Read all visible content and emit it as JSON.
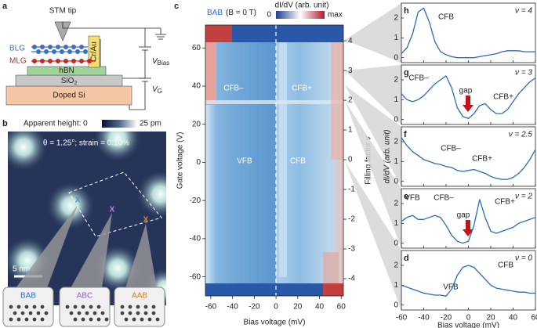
{
  "figure": {
    "panel_a": {
      "label": "a",
      "stm_tip": "STM tip",
      "blg": "BLG",
      "mlg": "MLG",
      "electrode": "Cr/Au",
      "hbn": "hBN",
      "sio2": {
        "text": "SiO",
        "subscript": "2"
      },
      "substrate": "Doped Si",
      "v_bias": {
        "symbol": "V",
        "subscript": "Bias"
      },
      "v_gate": {
        "symbol": "V",
        "subscript": "G"
      }
    },
    "panel_b": {
      "label": "b",
      "colorbar_label": "Apparent height: 0",
      "colorbar_max": "25 pm",
      "annotation": "θ = 1.25°; strain = 0.10%",
      "scale_bar": "5 nm",
      "markers": [
        "X",
        "X",
        "X"
      ],
      "stackings": [
        "BAB",
        "ABC",
        "AAB"
      ]
    }
  },
  "chart_data": [
    {
      "type": "heatmap",
      "panel": "c",
      "title": "BAB",
      "subtitle": "(B = 0 T)",
      "colorbar_label": "dI/dV (arb. unit)",
      "colorbar_ticks": [
        "0",
        "max"
      ],
      "xlabel": "Bias voltage (mV)",
      "ylabel": "Gate voltage (V)",
      "y2label": "Filling factor ν",
      "xlim": [
        -65,
        62
      ],
      "xticks": [
        -60,
        -40,
        -20,
        0,
        20,
        40,
        60
      ],
      "ylim": [
        -70,
        72
      ],
      "yticks": [
        -60,
        -40,
        -20,
        0,
        20,
        40,
        60
      ],
      "y2lim": [
        -4.58,
        4.53
      ],
      "y2ticks": [
        -4,
        -3,
        -2,
        -1,
        0,
        1,
        2,
        3,
        4
      ],
      "annotations": [
        "CFB–",
        "CFB+",
        "VFB",
        "CFB"
      ]
    },
    {
      "type": "line",
      "panel": "h",
      "annotation_label": "ν = 4",
      "x": [
        -60,
        -55,
        -50,
        -45,
        -40,
        -35,
        -30,
        -25,
        -20,
        -15,
        -10,
        -5,
        0,
        5,
        10,
        15,
        20,
        25,
        30,
        35,
        40,
        45,
        50,
        55,
        60
      ],
      "xlim": [
        -60,
        60
      ],
      "ylim": [
        -0.25,
        2.75
      ],
      "yticks": [
        0,
        1,
        2
      ],
      "series": [
        {
          "color": "#2b6cb8",
          "values": [
            0.2,
            0.5,
            1.2,
            2.3,
            2.5,
            1.8,
            0.8,
            0.3,
            0.15,
            0.05,
            0.0,
            0.0,
            0.0,
            0.0,
            0.05,
            0.1,
            0.15,
            0.2,
            0.3,
            0.35,
            0.35,
            0.35,
            0.3,
            0.3,
            0.3
          ]
        }
      ],
      "annotations": [
        "CFB"
      ]
    },
    {
      "type": "line",
      "panel": "g",
      "annotation_label": "ν = 3",
      "x": [
        -60,
        -55,
        -50,
        -45,
        -40,
        -35,
        -30,
        -25,
        -20,
        -15,
        -10,
        -5,
        0,
        5,
        10,
        15,
        20,
        25,
        30,
        35,
        40,
        45,
        50,
        55,
        60
      ],
      "xlim": [
        -60,
        60
      ],
      "ylim": [
        -0.25,
        2.75
      ],
      "yticks": [
        0,
        1,
        2
      ],
      "series": [
        {
          "color": "#2b6cb8",
          "values": [
            1.3,
            1.0,
            0.9,
            1.0,
            1.2,
            1.5,
            1.8,
            2.0,
            2.2,
            1.6,
            0.6,
            0.15,
            0.05,
            0.3,
            0.7,
            0.8,
            0.5,
            0.3,
            0.3,
            0.5,
            0.9,
            1.3,
            1.6,
            1.9,
            2.1
          ]
        }
      ],
      "annotations": [
        "CFB–",
        "gap",
        "CFB+"
      ]
    },
    {
      "type": "line",
      "panel": "f",
      "annotation_label": "ν = 2.5",
      "ylabel": "dI/dV (arb. unit)",
      "x": [
        -60,
        -55,
        -50,
        -45,
        -40,
        -35,
        -30,
        -25,
        -20,
        -15,
        -10,
        -5,
        0,
        5,
        10,
        15,
        20,
        25,
        30,
        35,
        40,
        45,
        50,
        55,
        60
      ],
      "xlim": [
        -60,
        60
      ],
      "ylim": [
        -0.25,
        2.75
      ],
      "yticks": [
        0,
        1,
        2
      ],
      "series": [
        {
          "color": "#2b6cb8",
          "values": [
            2.2,
            1.8,
            1.5,
            1.3,
            1.1,
            1.0,
            0.9,
            0.85,
            0.75,
            0.7,
            0.55,
            0.5,
            0.55,
            0.6,
            0.5,
            0.4,
            0.25,
            0.15,
            0.1,
            0.1,
            0.2,
            0.4,
            0.7,
            1.1,
            1.6
          ]
        }
      ],
      "annotations": [
        "CFB–",
        "CFB+"
      ]
    },
    {
      "type": "line",
      "panel": "e",
      "annotation_label": "ν = 2",
      "x": [
        -60,
        -55,
        -50,
        -45,
        -40,
        -35,
        -30,
        -25,
        -20,
        -15,
        -10,
        -5,
        0,
        5,
        10,
        15,
        20,
        25,
        30,
        35,
        40,
        45,
        50,
        55,
        60
      ],
      "xlim": [
        -60,
        60
      ],
      "ylim": [
        -0.25,
        2.75
      ],
      "yticks": [
        0,
        1,
        2
      ],
      "series": [
        {
          "color": "#2b6cb8",
          "values": [
            1.1,
            1.3,
            1.4,
            1.2,
            1.2,
            1.3,
            1.4,
            1.3,
            0.9,
            0.4,
            0.1,
            0.0,
            0.1,
            0.9,
            2.2,
            1.3,
            0.6,
            0.5,
            0.6,
            0.7,
            0.8,
            1.0,
            1.1,
            1.2,
            1.3
          ]
        }
      ],
      "annotations": [
        "VFB",
        "CFB–",
        "gap",
        "CFB+"
      ]
    },
    {
      "type": "line",
      "panel": "d",
      "annotation_label": "ν = 0",
      "xlabel": "Bias voltage (mV)",
      "x": [
        -60,
        -55,
        -50,
        -45,
        -40,
        -35,
        -30,
        -25,
        -20,
        -15,
        -10,
        -5,
        0,
        5,
        10,
        15,
        20,
        25,
        30,
        35,
        40,
        45,
        50,
        55,
        60
      ],
      "xlim": [
        -60,
        60
      ],
      "xticks": [
        -60,
        -40,
        -20,
        0,
        20,
        40,
        60
      ],
      "ylim": [
        -0.25,
        2.75
      ],
      "yticks": [
        0,
        1,
        2
      ],
      "series": [
        {
          "color": "#2b6cb8",
          "values": [
            1.0,
            0.9,
            0.8,
            0.7,
            0.6,
            0.55,
            0.5,
            0.5,
            0.45,
            0.8,
            1.5,
            1.9,
            2.0,
            1.9,
            1.6,
            1.3,
            1.0,
            0.85,
            0.8,
            0.75,
            0.7,
            0.65,
            0.65,
            0.6,
            0.6
          ]
        }
      ],
      "annotations": [
        "CFB",
        "VFB"
      ]
    }
  ]
}
